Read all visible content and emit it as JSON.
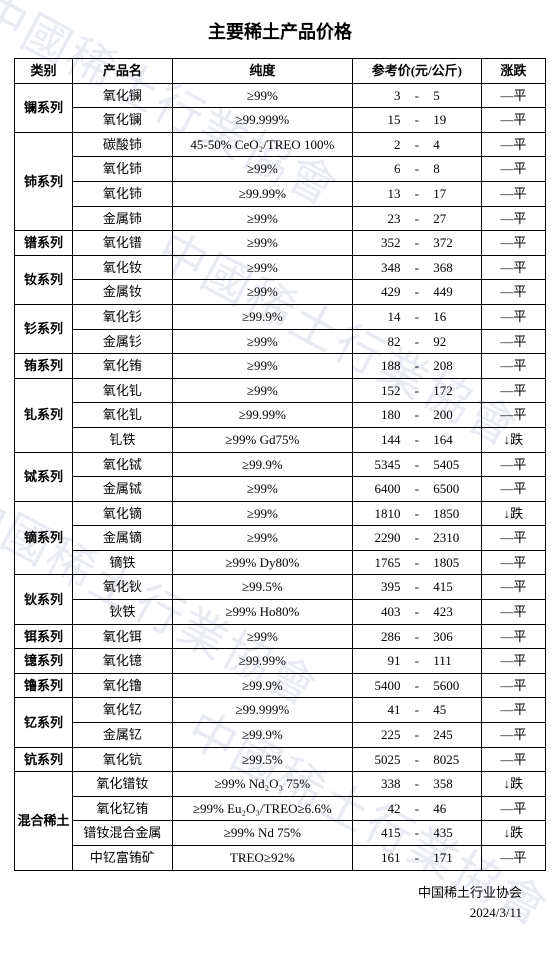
{
  "title": "主要稀土产品价格",
  "columns": {
    "category": "类别",
    "name": "产品名",
    "purity": "纯度",
    "price": "参考价(元/公斤)",
    "trend": "涨跌"
  },
  "footer": {
    "org": "中国稀土行业协会",
    "date": "2024/3/11"
  },
  "watermark": "中國稀土行業協會",
  "groups": [
    {
      "category": "镧系列",
      "rows": [
        {
          "name": "氧化镧",
          "purity": "≥99%",
          "p1": "3",
          "p2": "5",
          "trend": "—平"
        },
        {
          "name": "氧化镧",
          "purity": "≥99.999%",
          "p1": "15",
          "p2": "19",
          "trend": "—平"
        }
      ]
    },
    {
      "category": "铈系列",
      "rows": [
        {
          "name": "碳酸铈",
          "purity": "45-50% CeO₂/TREO 100%",
          "p1": "2",
          "p2": "4",
          "trend": "—平"
        },
        {
          "name": "氧化铈",
          "purity": "≥99%",
          "p1": "6",
          "p2": "8",
          "trend": "—平"
        },
        {
          "name": "氧化铈",
          "purity": "≥99.99%",
          "p1": "13",
          "p2": "17",
          "trend": "—平"
        },
        {
          "name": "金属铈",
          "purity": "≥99%",
          "p1": "23",
          "p2": "27",
          "trend": "—平"
        }
      ]
    },
    {
      "category": "镨系列",
      "rows": [
        {
          "name": "氧化镨",
          "purity": "≥99%",
          "p1": "352",
          "p2": "372",
          "trend": "—平"
        }
      ]
    },
    {
      "category": "钕系列",
      "rows": [
        {
          "name": "氧化钕",
          "purity": "≥99%",
          "p1": "348",
          "p2": "368",
          "trend": "—平"
        },
        {
          "name": "金属钕",
          "purity": "≥99%",
          "p1": "429",
          "p2": "449",
          "trend": "—平"
        }
      ]
    },
    {
      "category": "钐系列",
      "rows": [
        {
          "name": "氧化钐",
          "purity": "≥99.9%",
          "p1": "14",
          "p2": "16",
          "trend": "—平"
        },
        {
          "name": "金属钐",
          "purity": "≥99%",
          "p1": "82",
          "p2": "92",
          "trend": "—平"
        }
      ]
    },
    {
      "category": "铕系列",
      "rows": [
        {
          "name": "氧化铕",
          "purity": "≥99%",
          "p1": "188",
          "p2": "208",
          "trend": "—平"
        }
      ]
    },
    {
      "category": "钆系列",
      "rows": [
        {
          "name": "氧化钆",
          "purity": "≥99%",
          "p1": "152",
          "p2": "172",
          "trend": "—平"
        },
        {
          "name": "氧化钆",
          "purity": "≥99.99%",
          "p1": "180",
          "p2": "200",
          "trend": "—平"
        },
        {
          "name": "钆铁",
          "purity": "≥99% Gd75%",
          "p1": "144",
          "p2": "164",
          "trend": "↓跌"
        }
      ]
    },
    {
      "category": "铽系列",
      "rows": [
        {
          "name": "氧化铽",
          "purity": "≥99.9%",
          "p1": "5345",
          "p2": "5405",
          "trend": "—平"
        },
        {
          "name": "金属铽",
          "purity": "≥99%",
          "p1": "6400",
          "p2": "6500",
          "trend": "—平"
        }
      ]
    },
    {
      "category": "镝系列",
      "rows": [
        {
          "name": "氧化镝",
          "purity": "≥99%",
          "p1": "1810",
          "p2": "1850",
          "trend": "↓跌"
        },
        {
          "name": "金属镝",
          "purity": "≥99%",
          "p1": "2290",
          "p2": "2310",
          "trend": "—平"
        },
        {
          "name": "镝铁",
          "purity": "≥99% Dy80%",
          "p1": "1765",
          "p2": "1805",
          "trend": "—平"
        }
      ]
    },
    {
      "category": "钬系列",
      "rows": [
        {
          "name": "氧化钬",
          "purity": "≥99.5%",
          "p1": "395",
          "p2": "415",
          "trend": "—平"
        },
        {
          "name": "钬铁",
          "purity": "≥99% Ho80%",
          "p1": "403",
          "p2": "423",
          "trend": "—平"
        }
      ]
    },
    {
      "category": "铒系列",
      "rows": [
        {
          "name": "氧化铒",
          "purity": "≥99%",
          "p1": "286",
          "p2": "306",
          "trend": "—平"
        }
      ]
    },
    {
      "category": "镱系列",
      "rows": [
        {
          "name": "氧化镱",
          "purity": "≥99.99%",
          "p1": "91",
          "p2": "111",
          "trend": "—平"
        }
      ]
    },
    {
      "category": "镥系列",
      "rows": [
        {
          "name": "氧化镥",
          "purity": "≥99.9%",
          "p1": "5400",
          "p2": "5600",
          "trend": "—平"
        }
      ]
    },
    {
      "category": "钇系列",
      "rows": [
        {
          "name": "氧化钇",
          "purity": "≥99.999%",
          "p1": "41",
          "p2": "45",
          "trend": "—平"
        },
        {
          "name": "金属钇",
          "purity": "≥99.9%",
          "p1": "225",
          "p2": "245",
          "trend": "—平"
        }
      ]
    },
    {
      "category": "钪系列",
      "rows": [
        {
          "name": "氧化钪",
          "purity": "≥99.5%",
          "p1": "5025",
          "p2": "8025",
          "trend": "—平"
        }
      ]
    },
    {
      "category": "混合稀土",
      "rows": [
        {
          "name": "氧化镨钕",
          "purity": "≥99%  Nd₂O₃  75%",
          "p1": "338",
          "p2": "358",
          "trend": "↓跌"
        },
        {
          "name": "氧化钇铕",
          "purity": "≥99% Eu₂O₃/TREO≥6.6%",
          "p1": "42",
          "p2": "46",
          "trend": "—平"
        },
        {
          "name": "镨钕混合金属",
          "purity": "≥99% Nd 75%",
          "p1": "415",
          "p2": "435",
          "trend": "↓跌"
        },
        {
          "name": "中钇富铕矿",
          "purity": "TREO≥92%",
          "p1": "161",
          "p2": "171",
          "trend": "—平"
        }
      ]
    }
  ],
  "colors": {
    "border": "#000000",
    "text": "#000000",
    "background": "#ffffff",
    "watermark": "#e8ecf2"
  }
}
